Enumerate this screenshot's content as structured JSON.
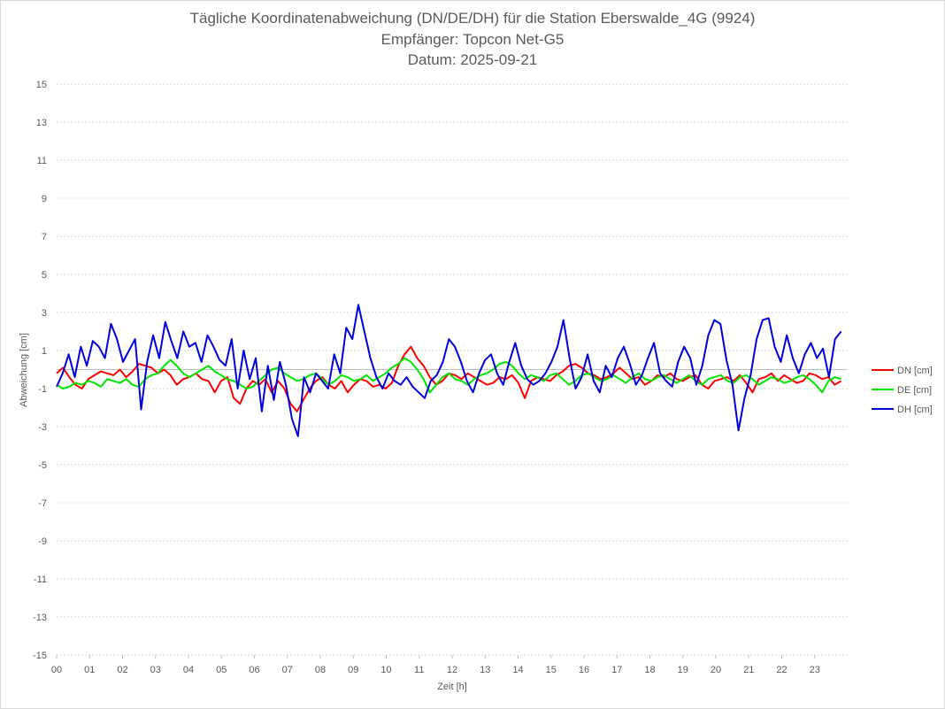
{
  "chart_data": {
    "type": "line",
    "title": "Tägliche Koordinatenabweichung (DN/DE/DH) für die Station Eberswalde_4G (9924)",
    "subtitle1": "Empfänger: Topcon Net-G5",
    "subtitle2": "Datum: 2025-09-21",
    "xlabel": "Zeit [h]",
    "ylabel": "Abweichung [cm]",
    "ylim": [
      -15,
      15
    ],
    "xlim": [
      0,
      24
    ],
    "yticks": [
      "15",
      "13",
      "11",
      "9",
      "7",
      "5",
      "3",
      "1",
      "-1",
      "-3",
      "-5",
      "-7",
      "-9",
      "-11",
      "-13",
      "-15"
    ],
    "xticks": [
      "00",
      "01",
      "02",
      "03",
      "04",
      "05",
      "06",
      "07",
      "08",
      "09",
      "10",
      "11",
      "12",
      "13",
      "14",
      "15",
      "16",
      "17",
      "18",
      "19",
      "20",
      "21",
      "22",
      "23"
    ],
    "grid": true,
    "legend_position": "right",
    "series": [
      {
        "name": "DN [cm]",
        "color": "#ff0000",
        "values": [
          -0.2,
          0.1,
          -0.4,
          -0.8,
          -1.0,
          -0.5,
          -0.3,
          -0.1,
          -0.2,
          -0.3,
          0.0,
          -0.4,
          -0.1,
          0.3,
          0.2,
          0.1,
          -0.2,
          0.0,
          -0.3,
          -0.8,
          -0.5,
          -0.4,
          -0.2,
          -0.5,
          -0.6,
          -1.2,
          -0.6,
          -0.4,
          -1.5,
          -1.8,
          -1.0,
          -0.6,
          -0.8,
          -0.5,
          -1.2,
          -0.6,
          -1.0,
          -1.8,
          -2.2,
          -1.6,
          -1.0,
          -0.6,
          -0.4,
          -0.8,
          -1.0,
          -0.6,
          -1.2,
          -0.8,
          -0.5,
          -0.6,
          -0.9,
          -0.8,
          -1.0,
          -0.7,
          0.2,
          0.8,
          1.2,
          0.6,
          0.2,
          -0.4,
          -0.8,
          -0.6,
          -0.2,
          -0.3,
          -0.5,
          -0.2,
          -0.4,
          -0.6,
          -0.8,
          -0.7,
          -0.4,
          -0.5,
          -0.3,
          -0.7,
          -1.5,
          -0.6,
          -0.4,
          -0.5,
          -0.6,
          -0.3,
          -0.1,
          0.2,
          0.3,
          0.1,
          -0.2,
          -0.3,
          -0.5,
          -0.4,
          -0.2,
          0.1,
          -0.2,
          -0.5,
          -0.4,
          -0.8,
          -0.6,
          -0.3,
          -0.4,
          -0.2,
          -0.5,
          -0.6,
          -0.4,
          -0.3,
          -0.8,
          -1.0,
          -0.6,
          -0.5,
          -0.4,
          -0.6,
          -0.3,
          -0.7,
          -1.2,
          -0.5,
          -0.4,
          -0.2,
          -0.6,
          -0.3,
          -0.5,
          -0.7,
          -0.6,
          -0.2,
          -0.3,
          -0.5,
          -0.4,
          -0.8,
          -0.6
        ]
      },
      {
        "name": "DE [cm]",
        "color": "#00e600",
        "values": [
          -0.8,
          -1.0,
          -0.9,
          -0.7,
          -0.8,
          -0.6,
          -0.7,
          -0.9,
          -0.5,
          -0.6,
          -0.7,
          -0.5,
          -0.8,
          -0.9,
          -0.5,
          -0.3,
          -0.2,
          0.2,
          0.5,
          0.2,
          -0.2,
          -0.4,
          -0.2,
          0.0,
          0.2,
          -0.1,
          -0.3,
          -0.5,
          -0.6,
          -0.8,
          -1.0,
          -0.9,
          -0.6,
          -0.3,
          0.0,
          0.1,
          -0.2,
          -0.4,
          -0.6,
          -0.5,
          -0.3,
          -0.2,
          -0.5,
          -0.8,
          -0.6,
          -0.3,
          -0.4,
          -0.6,
          -0.5,
          -0.3,
          -0.6,
          -0.4,
          -0.2,
          0.1,
          0.3,
          0.6,
          0.4,
          0.0,
          -0.5,
          -1.2,
          -0.8,
          -0.4,
          -0.2,
          -0.5,
          -0.6,
          -0.8,
          -0.5,
          -0.3,
          -0.2,
          0.0,
          0.3,
          0.4,
          0.2,
          -0.2,
          -0.5,
          -0.3,
          -0.4,
          -0.6,
          -0.3,
          -0.2,
          -0.5,
          -0.8,
          -0.6,
          -0.3,
          -0.2,
          -0.4,
          -0.6,
          -0.5,
          -0.3,
          -0.5,
          -0.7,
          -0.4,
          -0.2,
          -0.5,
          -0.6,
          -0.4,
          -0.3,
          -0.5,
          -0.7,
          -0.5,
          -0.3,
          -0.6,
          -0.8,
          -0.5,
          -0.4,
          -0.3,
          -0.6,
          -0.7,
          -0.4,
          -0.3,
          -0.5,
          -0.8,
          -0.6,
          -0.4,
          -0.5,
          -0.7,
          -0.6,
          -0.4,
          -0.3,
          -0.5,
          -0.8,
          -1.2,
          -0.6,
          -0.4,
          -0.5
        ]
      },
      {
        "name": "DH [cm]",
        "color": "#0000dd",
        "values": [
          -0.9,
          -0.2,
          0.8,
          -0.4,
          1.2,
          0.2,
          1.5,
          1.2,
          0.6,
          2.4,
          1.6,
          0.4,
          1.0,
          1.6,
          -2.1,
          0.4,
          1.8,
          0.6,
          2.5,
          1.5,
          0.6,
          2.0,
          1.2,
          1.4,
          0.4,
          1.8,
          1.2,
          0.5,
          0.2,
          1.6,
          -1.0,
          1.0,
          -0.5,
          0.6,
          -2.2,
          0.2,
          -1.6,
          0.4,
          -0.8,
          -2.6,
          -3.5,
          -0.4,
          -1.2,
          -0.2,
          -0.6,
          -1.0,
          0.8,
          -0.2,
          2.2,
          1.6,
          3.4,
          2.0,
          0.6,
          -0.4,
          -1.0,
          -0.2,
          -0.6,
          -0.8,
          -0.4,
          -0.9,
          -1.2,
          -1.5,
          -0.6,
          -0.3,
          0.4,
          1.6,
          1.2,
          0.4,
          -0.6,
          -1.2,
          -0.2,
          0.5,
          0.8,
          -0.2,
          -0.8,
          0.4,
          1.4,
          0.2,
          -0.5,
          -0.8,
          -0.6,
          -0.2,
          0.4,
          1.2,
          2.6,
          0.6,
          -1.0,
          -0.4,
          0.8,
          -0.6,
          -1.2,
          0.2,
          -0.4,
          0.6,
          1.2,
          0.3,
          -0.8,
          -0.3,
          0.6,
          1.4,
          -0.2,
          -0.6,
          -0.9,
          0.4,
          1.2,
          0.6,
          -0.8,
          0.2,
          1.8,
          2.6,
          2.4,
          0.5,
          -0.8,
          -3.2,
          -1.5,
          -0.3,
          1.6,
          2.6,
          2.7,
          1.2,
          0.4,
          1.8,
          0.6,
          -0.2,
          0.8,
          1.4,
          0.6,
          1.1,
          -0.4,
          1.6,
          2.0
        ]
      }
    ]
  }
}
